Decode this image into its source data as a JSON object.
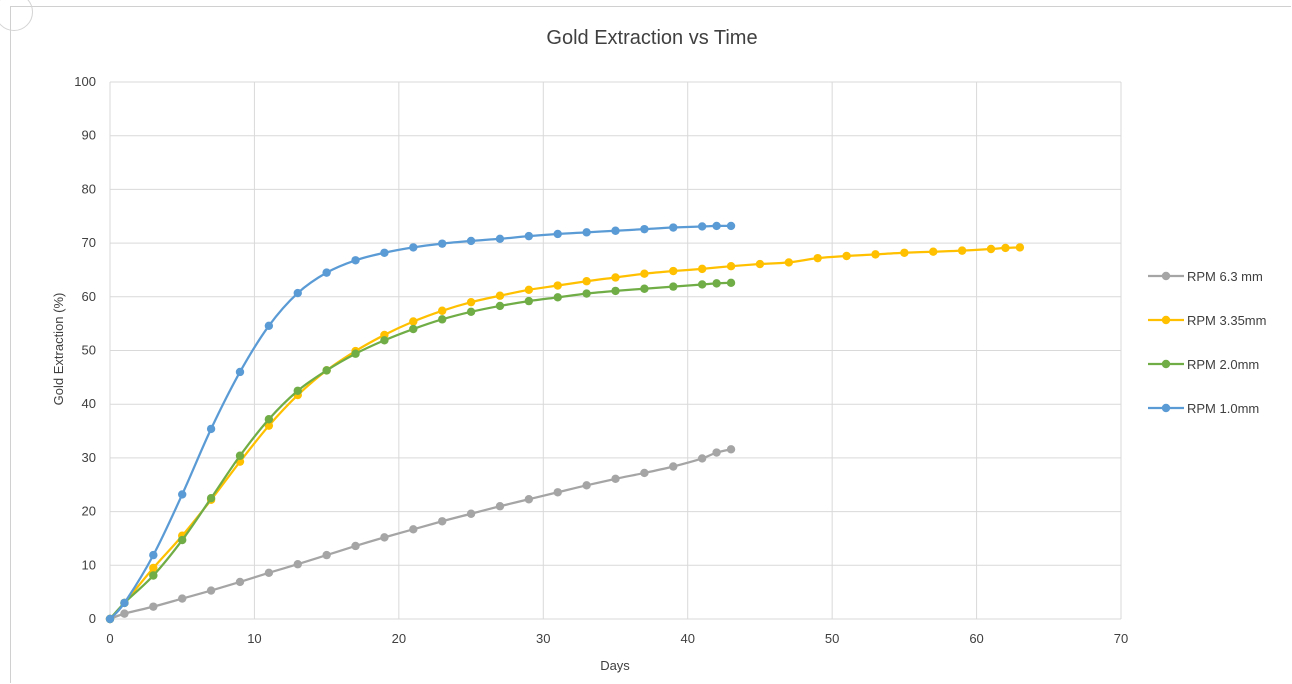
{
  "chart_data": {
    "type": "line",
    "title": "Gold Extraction vs Time",
    "xlabel": "Days",
    "ylabel": "Gold Extraction (%)",
    "xlim": [
      0,
      70
    ],
    "ylim": [
      0,
      100
    ],
    "xticks": [
      0,
      10,
      20,
      30,
      40,
      50,
      60,
      70
    ],
    "yticks": [
      0,
      10,
      20,
      30,
      40,
      50,
      60,
      70,
      80,
      90,
      100
    ],
    "grid": true,
    "smooth": true,
    "legend": "right",
    "series": [
      {
        "name": "RPM 6.3 mm",
        "color": "#a5a5a5",
        "points": [
          [
            0,
            0
          ],
          [
            1,
            1.0
          ],
          [
            3,
            2.3
          ],
          [
            5,
            3.8
          ],
          [
            7,
            5.3
          ],
          [
            9,
            6.9
          ],
          [
            11,
            8.6
          ],
          [
            13,
            10.2
          ],
          [
            15,
            11.9
          ],
          [
            17,
            13.6
          ],
          [
            19,
            15.2
          ],
          [
            21,
            16.7
          ],
          [
            23,
            18.2
          ],
          [
            25,
            19.6
          ],
          [
            27,
            21.0
          ],
          [
            29,
            22.3
          ],
          [
            31,
            23.6
          ],
          [
            33,
            24.9
          ],
          [
            35,
            26.1
          ],
          [
            37,
            27.2
          ],
          [
            39,
            28.4
          ],
          [
            41,
            29.9
          ],
          [
            42,
            31.0
          ],
          [
            43,
            31.6
          ]
        ]
      },
      {
        "name": "RPM 3.35mm",
        "color": "#ffc000",
        "points": [
          [
            0,
            0
          ],
          [
            1,
            3.0
          ],
          [
            3,
            9.5
          ],
          [
            5,
            15.5
          ],
          [
            7,
            22.2
          ],
          [
            9,
            29.3
          ],
          [
            11,
            36.0
          ],
          [
            13,
            41.7
          ],
          [
            15,
            46.3
          ],
          [
            17,
            49.9
          ],
          [
            19,
            52.9
          ],
          [
            21,
            55.4
          ],
          [
            23,
            57.4
          ],
          [
            25,
            59.0
          ],
          [
            27,
            60.2
          ],
          [
            29,
            61.3
          ],
          [
            31,
            62.1
          ],
          [
            33,
            62.9
          ],
          [
            35,
            63.6
          ],
          [
            37,
            64.3
          ],
          [
            39,
            64.8
          ],
          [
            41,
            65.2
          ],
          [
            43,
            65.7
          ],
          [
            45,
            66.1
          ],
          [
            47,
            66.4
          ],
          [
            49,
            67.2
          ],
          [
            51,
            67.6
          ],
          [
            53,
            67.9
          ],
          [
            55,
            68.2
          ],
          [
            57,
            68.4
          ],
          [
            59,
            68.6
          ],
          [
            61,
            68.9
          ],
          [
            62,
            69.1
          ],
          [
            63,
            69.2
          ]
        ]
      },
      {
        "name": "RPM 2.0mm",
        "color": "#70ad47",
        "points": [
          [
            0,
            0
          ],
          [
            1,
            3.0
          ],
          [
            3,
            8.1
          ],
          [
            5,
            14.7
          ],
          [
            7,
            22.5
          ],
          [
            9,
            30.4
          ],
          [
            11,
            37.2
          ],
          [
            13,
            42.5
          ],
          [
            15,
            46.3
          ],
          [
            17,
            49.4
          ],
          [
            19,
            51.9
          ],
          [
            21,
            54.0
          ],
          [
            23,
            55.8
          ],
          [
            25,
            57.2
          ],
          [
            27,
            58.3
          ],
          [
            29,
            59.2
          ],
          [
            31,
            59.9
          ],
          [
            33,
            60.6
          ],
          [
            35,
            61.1
          ],
          [
            37,
            61.5
          ],
          [
            39,
            61.9
          ],
          [
            41,
            62.3
          ],
          [
            42,
            62.5
          ],
          [
            43,
            62.6
          ]
        ]
      },
      {
        "name": "RPM 1.0mm",
        "color": "#5b9bd5",
        "points": [
          [
            0,
            0
          ],
          [
            1,
            3.0
          ],
          [
            3,
            11.9
          ],
          [
            5,
            23.2
          ],
          [
            7,
            35.4
          ],
          [
            9,
            46.0
          ],
          [
            11,
            54.6
          ],
          [
            13,
            60.7
          ],
          [
            15,
            64.5
          ],
          [
            17,
            66.8
          ],
          [
            19,
            68.2
          ],
          [
            21,
            69.2
          ],
          [
            23,
            69.9
          ],
          [
            25,
            70.4
          ],
          [
            27,
            70.8
          ],
          [
            29,
            71.3
          ],
          [
            31,
            71.7
          ],
          [
            33,
            72.0
          ],
          [
            35,
            72.3
          ],
          [
            37,
            72.6
          ],
          [
            39,
            72.9
          ],
          [
            41,
            73.1
          ],
          [
            42,
            73.2
          ],
          [
            43,
            73.2
          ]
        ]
      }
    ]
  }
}
